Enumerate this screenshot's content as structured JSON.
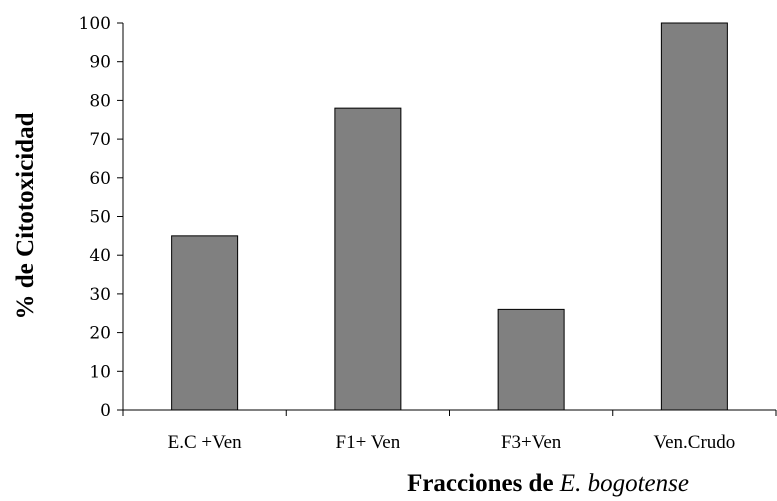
{
  "chart_data": {
    "type": "bar",
    "categories": [
      "E.C +Ven",
      "F1+ Ven",
      "F3+Ven",
      "Ven.Crudo"
    ],
    "values": [
      45,
      78,
      26,
      100
    ],
    "xlabel": "Fracciones de E. bogotense",
    "xlabel_parts": {
      "prefix": "Fracciones de ",
      "italic": "E. bogotense"
    },
    "ylabel": "% de Citotoxicidad",
    "ylim": [
      0,
      100
    ],
    "yticks": [
      0,
      10,
      20,
      30,
      40,
      50,
      60,
      70,
      80,
      90,
      100
    ],
    "grid": false,
    "bar_color": "#808080",
    "bar_edge_color": "#000000"
  }
}
